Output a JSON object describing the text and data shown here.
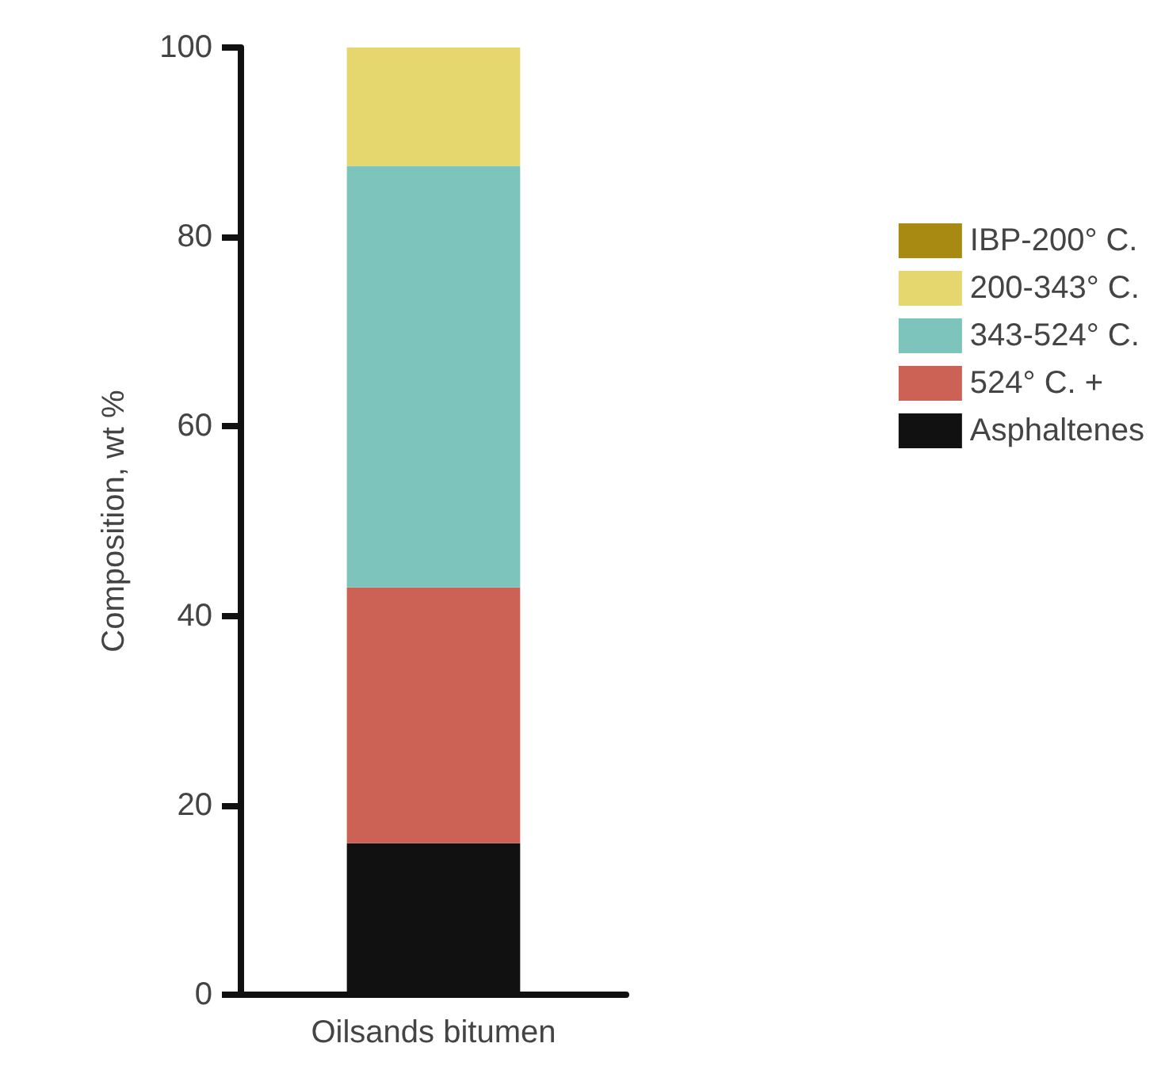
{
  "chart_data": {
    "type": "bar",
    "stacked": true,
    "ylabel": "Composition, wt %",
    "categories": [
      "Oilsands bitumen"
    ],
    "series": [
      {
        "name": "Asphaltenes",
        "color": "#111111",
        "values": [
          16
        ]
      },
      {
        "name": "524° C. +",
        "color": "#cc6155",
        "values": [
          27
        ]
      },
      {
        "name": "343-524° C.",
        "color": "#7cc4bc",
        "values": [
          44.5
        ]
      },
      {
        "name": "200-343° C.",
        "color": "#e6d66e",
        "values": [
          12.5
        ]
      },
      {
        "name": "IBP-200° C.",
        "color": "#a88a12",
        "values": [
          0
        ]
      }
    ],
    "ylim": [
      0,
      100
    ],
    "yticks": [
      0,
      20,
      40,
      60,
      80,
      100
    ],
    "grid": false,
    "legend": "right"
  }
}
